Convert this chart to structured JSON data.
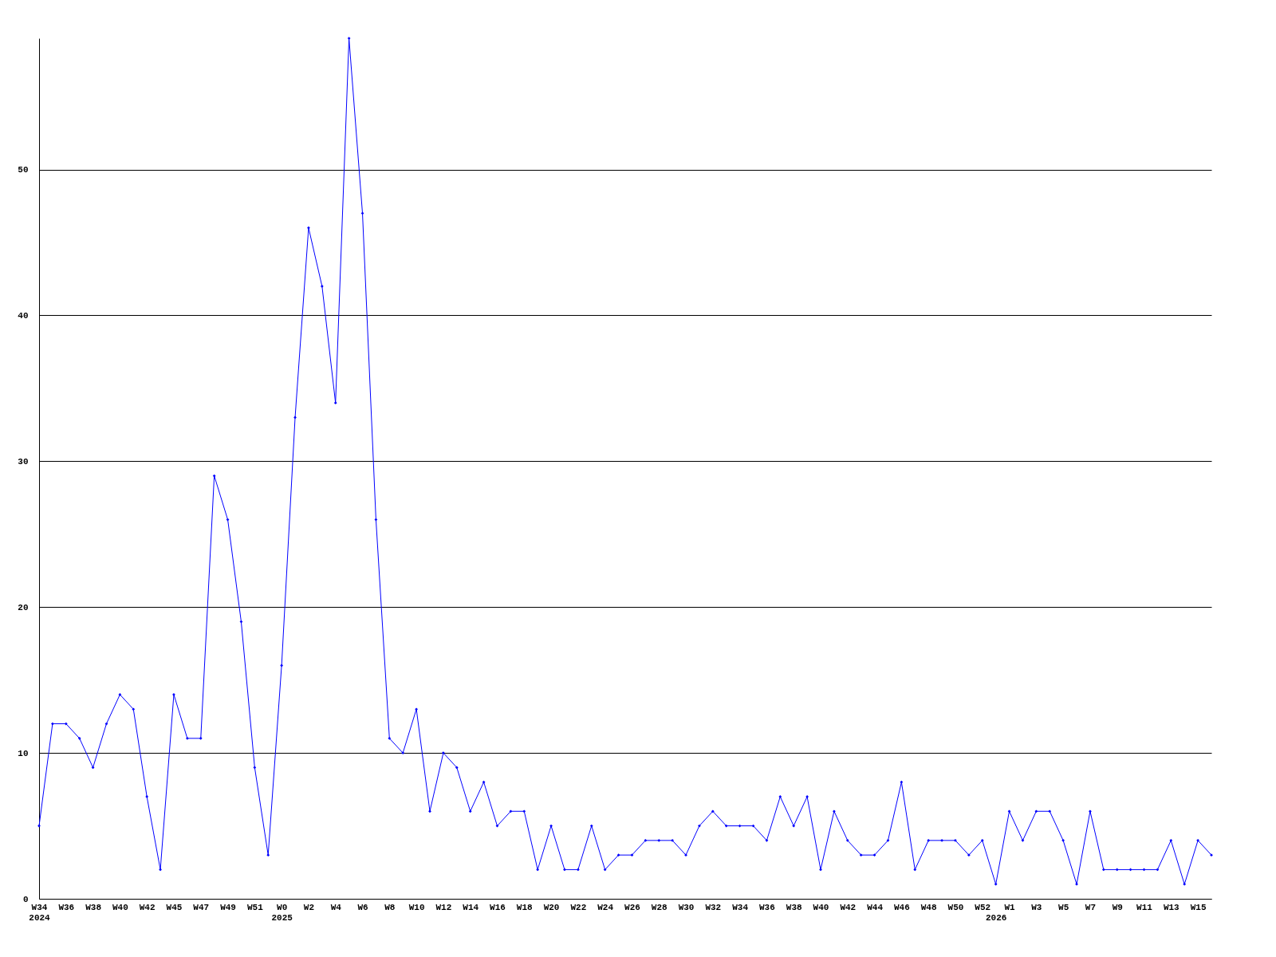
{
  "chart_data": {
    "type": "line",
    "categories": [
      "W34\n2024",
      null,
      "W36",
      null,
      "W38",
      null,
      "W40",
      null,
      "W42",
      null,
      "W45",
      null,
      "W47",
      null,
      "W49",
      null,
      "W51",
      null,
      "W0\n2025",
      null,
      "W2",
      null,
      "W4",
      null,
      "W6",
      null,
      "W8",
      null,
      "W10",
      null,
      "W12",
      null,
      "W14",
      null,
      "W16",
      null,
      "W18",
      null,
      "W20",
      null,
      "W22",
      null,
      "W24",
      null,
      "W26",
      null,
      "W28",
      null,
      "W30",
      null,
      "W32",
      null,
      "W34",
      null,
      "W36",
      null,
      "W38",
      null,
      "W40",
      null,
      "W42",
      null,
      "W44",
      null,
      "W46",
      null,
      "W48",
      null,
      "W50",
      null,
      "W52",
      "\n2026",
      "W1",
      null,
      "W3",
      null,
      "W5",
      null,
      "W7",
      null,
      "W9",
      null,
      "W11",
      null,
      "W13",
      null,
      "W15",
      null
    ],
    "series": [
      {
        "color": "#0000ff",
        "values": [
          5,
          12,
          12,
          11,
          9,
          12,
          14,
          13,
          7,
          2,
          14,
          11,
          11,
          29,
          26,
          19,
          9,
          3,
          16,
          33,
          46,
          42,
          34,
          59,
          47,
          26,
          11,
          10,
          13,
          6,
          10,
          9,
          6,
          8,
          5,
          6,
          6,
          2,
          5,
          2,
          2,
          5,
          2,
          3,
          3,
          4,
          4,
          4,
          3,
          5,
          6,
          5,
          5,
          5,
          4,
          7,
          5,
          7,
          2,
          6,
          4,
          3,
          3,
          4,
          8,
          2,
          4,
          4,
          4,
          3,
          4,
          1,
          6,
          4,
          6,
          6,
          4,
          1,
          6,
          2,
          2,
          2,
          2,
          2,
          4,
          1,
          4,
          3
        ]
      }
    ],
    "ylim": [
      0,
      59
    ],
    "yticks": [
      0,
      10,
      20,
      30,
      40,
      50
    ],
    "grid": "y",
    "marker": "diamond",
    "line_style": "solid"
  }
}
